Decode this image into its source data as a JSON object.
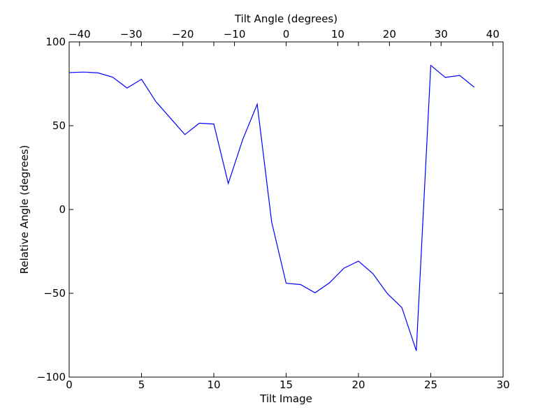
{
  "chart_data": {
    "type": "line",
    "xlabel": "Tilt Image",
    "ylabel": "Relative Angle (degrees)",
    "top_xlabel": "Tilt Angle (degrees)",
    "xlim": [
      0,
      30
    ],
    "ylim": [
      -100,
      100
    ],
    "top_xlim": [
      -42,
      42
    ],
    "x_ticks": [
      0,
      5,
      10,
      15,
      20,
      25,
      30
    ],
    "y_ticks": [
      -100,
      -50,
      0,
      50,
      100
    ],
    "top_x_ticks": [
      -40,
      -30,
      -20,
      -10,
      0,
      10,
      20,
      30,
      40
    ],
    "top_x_tick_labels": [
      "−40",
      "−30",
      "−20",
      "−10",
      "0",
      "10",
      "20",
      "30",
      "40"
    ],
    "y_tick_labels": [
      "−100",
      "−50",
      "0",
      "50",
      "100"
    ],
    "x_tick_labels": [
      "0",
      "5",
      "10",
      "15",
      "20",
      "25",
      "30"
    ],
    "grid": false,
    "line_color": "#0000ff",
    "series": [
      {
        "x": [
          0,
          1,
          2,
          3,
          4,
          5,
          6,
          7,
          8,
          9,
          10,
          11,
          12,
          13,
          14,
          15,
          16,
          17,
          18,
          19,
          20,
          21,
          22,
          23,
          24,
          25,
          26,
          27,
          28
        ],
        "values": [
          81.7,
          82.0,
          81.5,
          79.0,
          72.5,
          77.7,
          64.3,
          54.5,
          44.7,
          51.5,
          51.0,
          15.5,
          41.8,
          62.8,
          -7.5,
          -44.0,
          -44.8,
          -49.7,
          -43.7,
          -35.0,
          -30.8,
          -38.3,
          -50.2,
          -58.5,
          -84.3,
          86.0,
          78.8,
          80.0,
          73.0
        ]
      }
    ]
  }
}
